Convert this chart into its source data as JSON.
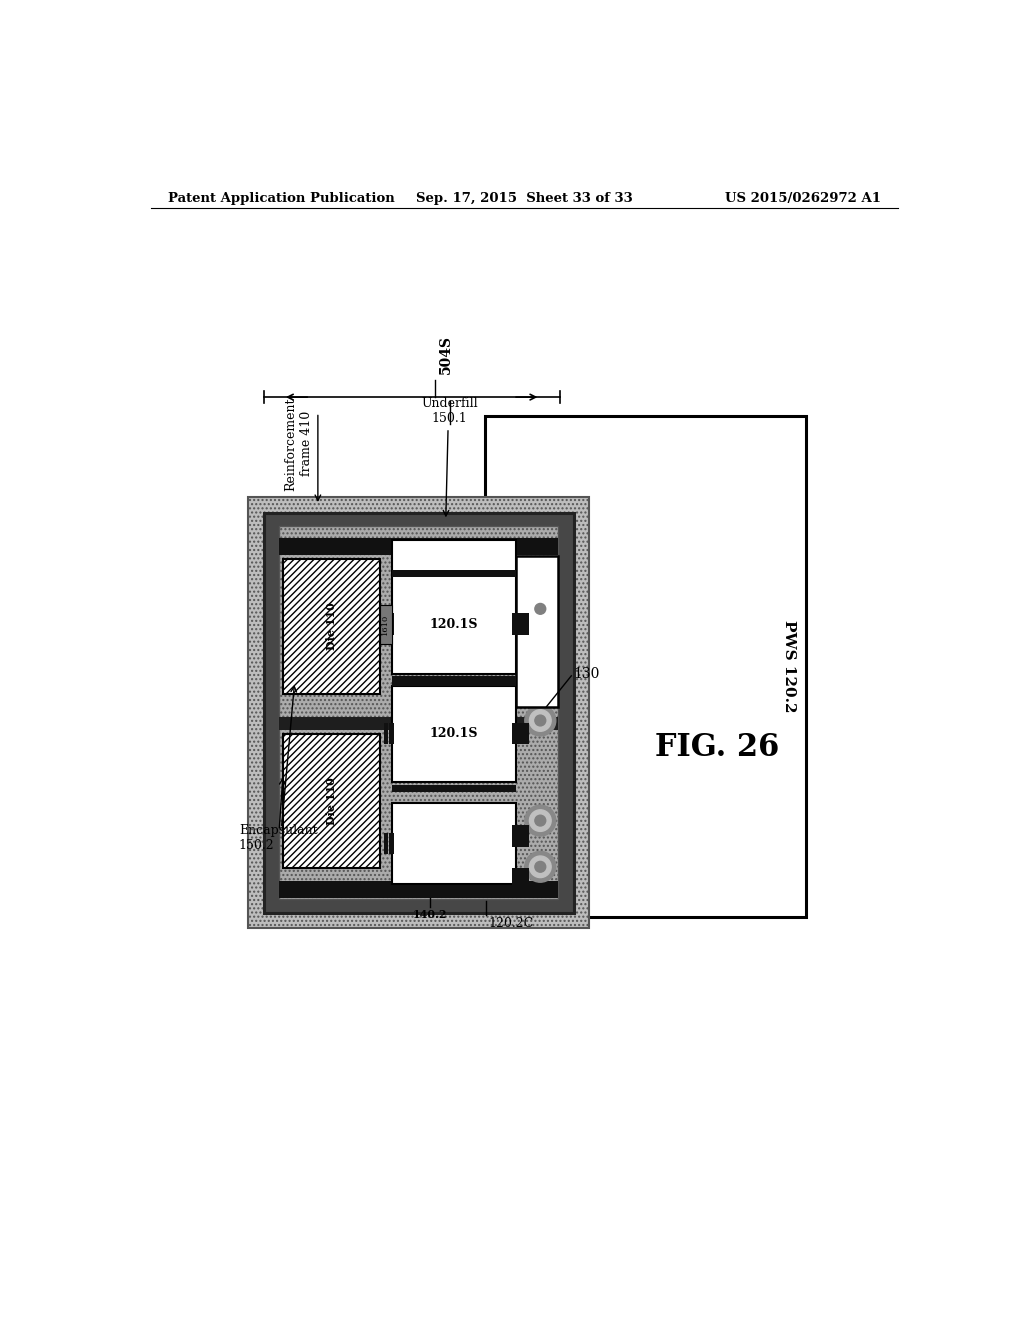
{
  "header_left": "Patent Application Publication",
  "header_mid": "Sep. 17, 2015  Sheet 33 of 33",
  "header_right": "US 2015/0262972 A1",
  "fig_label": "FIG. 26",
  "brace_label": "504S",
  "labels": {
    "reinforcement": "Reinforcement\nframe 410",
    "underfill": "Underfill\n150.1",
    "pws": "PWS 120.2",
    "encapsulant": "Encapsulant\n150.2",
    "die1": "Die 110",
    "die2": "Die 110",
    "sub1": "120.1S",
    "sub2": "120.1S",
    "label_130": "130",
    "label_1610": "1610",
    "label_140": "140.2",
    "label_120c": "120.2C"
  },
  "colors": {
    "background": "#ffffff",
    "encapsulant_gray": "#b8b8b8",
    "dark_frame": "#3c3c3c",
    "inner_gray": "#a0a0a0",
    "white": "#ffffff",
    "black": "#000000",
    "dark_strip": "#1a1a1a",
    "medium_gray": "#888888",
    "dot_mid": "#b0b0b0",
    "dot_dark": "#787878"
  }
}
